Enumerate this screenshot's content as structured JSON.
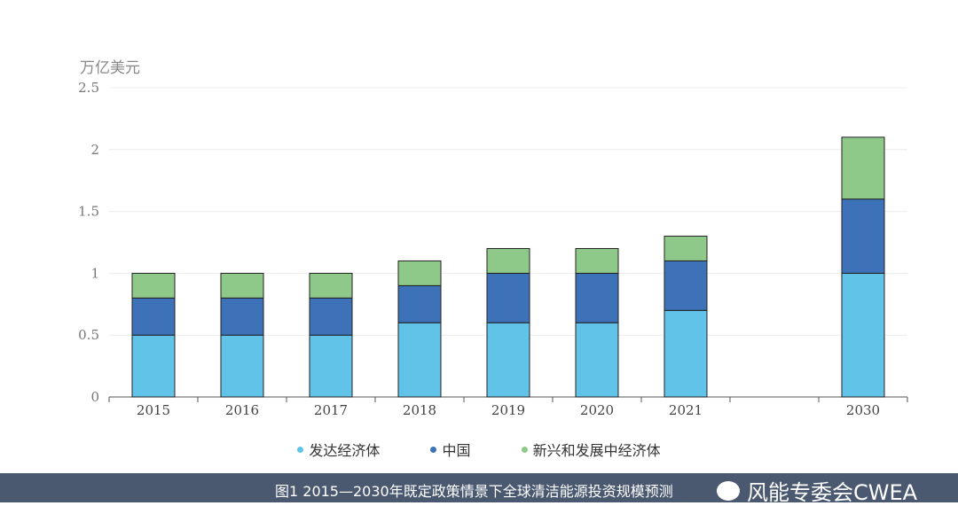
{
  "chart_data": {
    "type": "bar",
    "stacked": true,
    "ylabel": "万亿美元",
    "ylim": [
      0,
      2.5
    ],
    "yticks": [
      "0",
      "0.5",
      "1",
      "1.5",
      "2",
      "2.5"
    ],
    "grid": true,
    "categories": [
      "2015",
      "2016",
      "2017",
      "2018",
      "2019",
      "2020",
      "2021",
      "",
      "2030"
    ],
    "series": [
      {
        "name": "发达经济体",
        "color": "#62c3e8",
        "values": [
          0.5,
          0.5,
          0.5,
          0.6,
          0.6,
          0.6,
          0.7,
          null,
          1.0
        ]
      },
      {
        "name": "中国",
        "color": "#3d72b8",
        "values": [
          0.3,
          0.3,
          0.3,
          0.3,
          0.4,
          0.4,
          0.4,
          null,
          0.6
        ]
      },
      {
        "name": "新兴和发展中经济体",
        "color": "#8fc98a",
        "values": [
          0.2,
          0.2,
          0.2,
          0.2,
          0.2,
          0.2,
          0.2,
          null,
          0.5
        ]
      }
    ],
    "legend_position": "bottom"
  },
  "caption": "图1 2015—2030年既定政策情景下全球清洁能源投资规模预测",
  "brand": "风能专委会CWEA"
}
